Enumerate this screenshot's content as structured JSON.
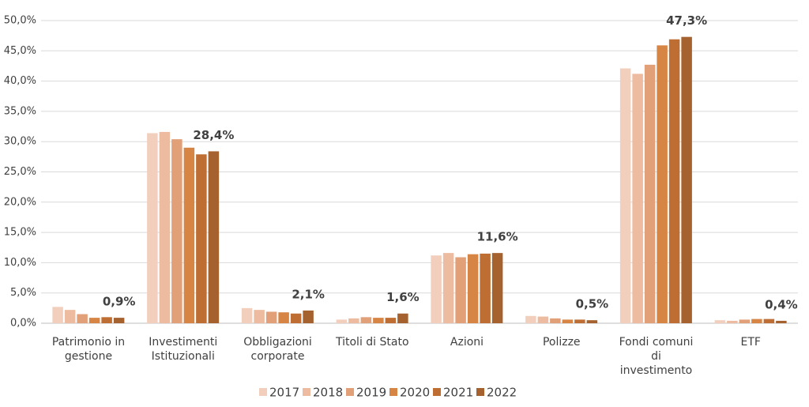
{
  "chart_data": {
    "type": "bar",
    "categories": [
      "Patrimonio in gestione",
      "Investimenti Istituzionali",
      "Obbligazioni corporate",
      "Titoli di Stato",
      "Azioni",
      "Polizze",
      "Fondi comuni di investimento",
      "ETF"
    ],
    "series": [
      {
        "name": "2017",
        "color": "#f2cfbd",
        "values": [
          2.7,
          31.4,
          2.5,
          0.6,
          11.2,
          1.2,
          42.1,
          0.5
        ]
      },
      {
        "name": "2018",
        "color": "#edbb9f",
        "values": [
          2.2,
          31.6,
          2.2,
          0.8,
          11.6,
          1.1,
          41.2,
          0.4
        ]
      },
      {
        "name": "2019",
        "color": "#e2a079",
        "values": [
          1.5,
          30.4,
          1.9,
          1.0,
          10.9,
          0.8,
          42.7,
          0.6
        ]
      },
      {
        "name": "2020",
        "color": "#d78545",
        "values": [
          0.9,
          29.0,
          1.8,
          0.9,
          11.4,
          0.6,
          45.9,
          0.7
        ]
      },
      {
        "name": "2021",
        "color": "#bf6e33",
        "values": [
          1.0,
          27.9,
          1.6,
          0.9,
          11.5,
          0.6,
          46.9,
          0.7
        ]
      },
      {
        "name": "2022",
        "color": "#a5612e",
        "values": [
          0.9,
          28.4,
          2.1,
          1.6,
          11.6,
          0.5,
          47.3,
          0.4
        ],
        "value_labels": [
          "0,9%",
          "28,4%",
          "2,1%",
          "1,6%",
          "11,6%",
          "0,5%",
          "47,3%",
          "0,4%"
        ]
      }
    ],
    "ylim": [
      0,
      50
    ],
    "yticks": [
      {
        "value": 0,
        "label": "0,0%"
      },
      {
        "value": 5,
        "label": "5,0%"
      },
      {
        "value": 10,
        "label": "10,0%"
      },
      {
        "value": 15,
        "label": "15,0%"
      },
      {
        "value": 20,
        "label": "20,0%"
      },
      {
        "value": 25,
        "label": "25,0%"
      },
      {
        "value": 30,
        "label": "30,0%"
      },
      {
        "value": 35,
        "label": "35,0%"
      },
      {
        "value": 40,
        "label": "40,0%"
      },
      {
        "value": 45,
        "label": "45,0%"
      },
      {
        "value": 50,
        "label": "50,0%"
      }
    ],
    "grid": true
  }
}
